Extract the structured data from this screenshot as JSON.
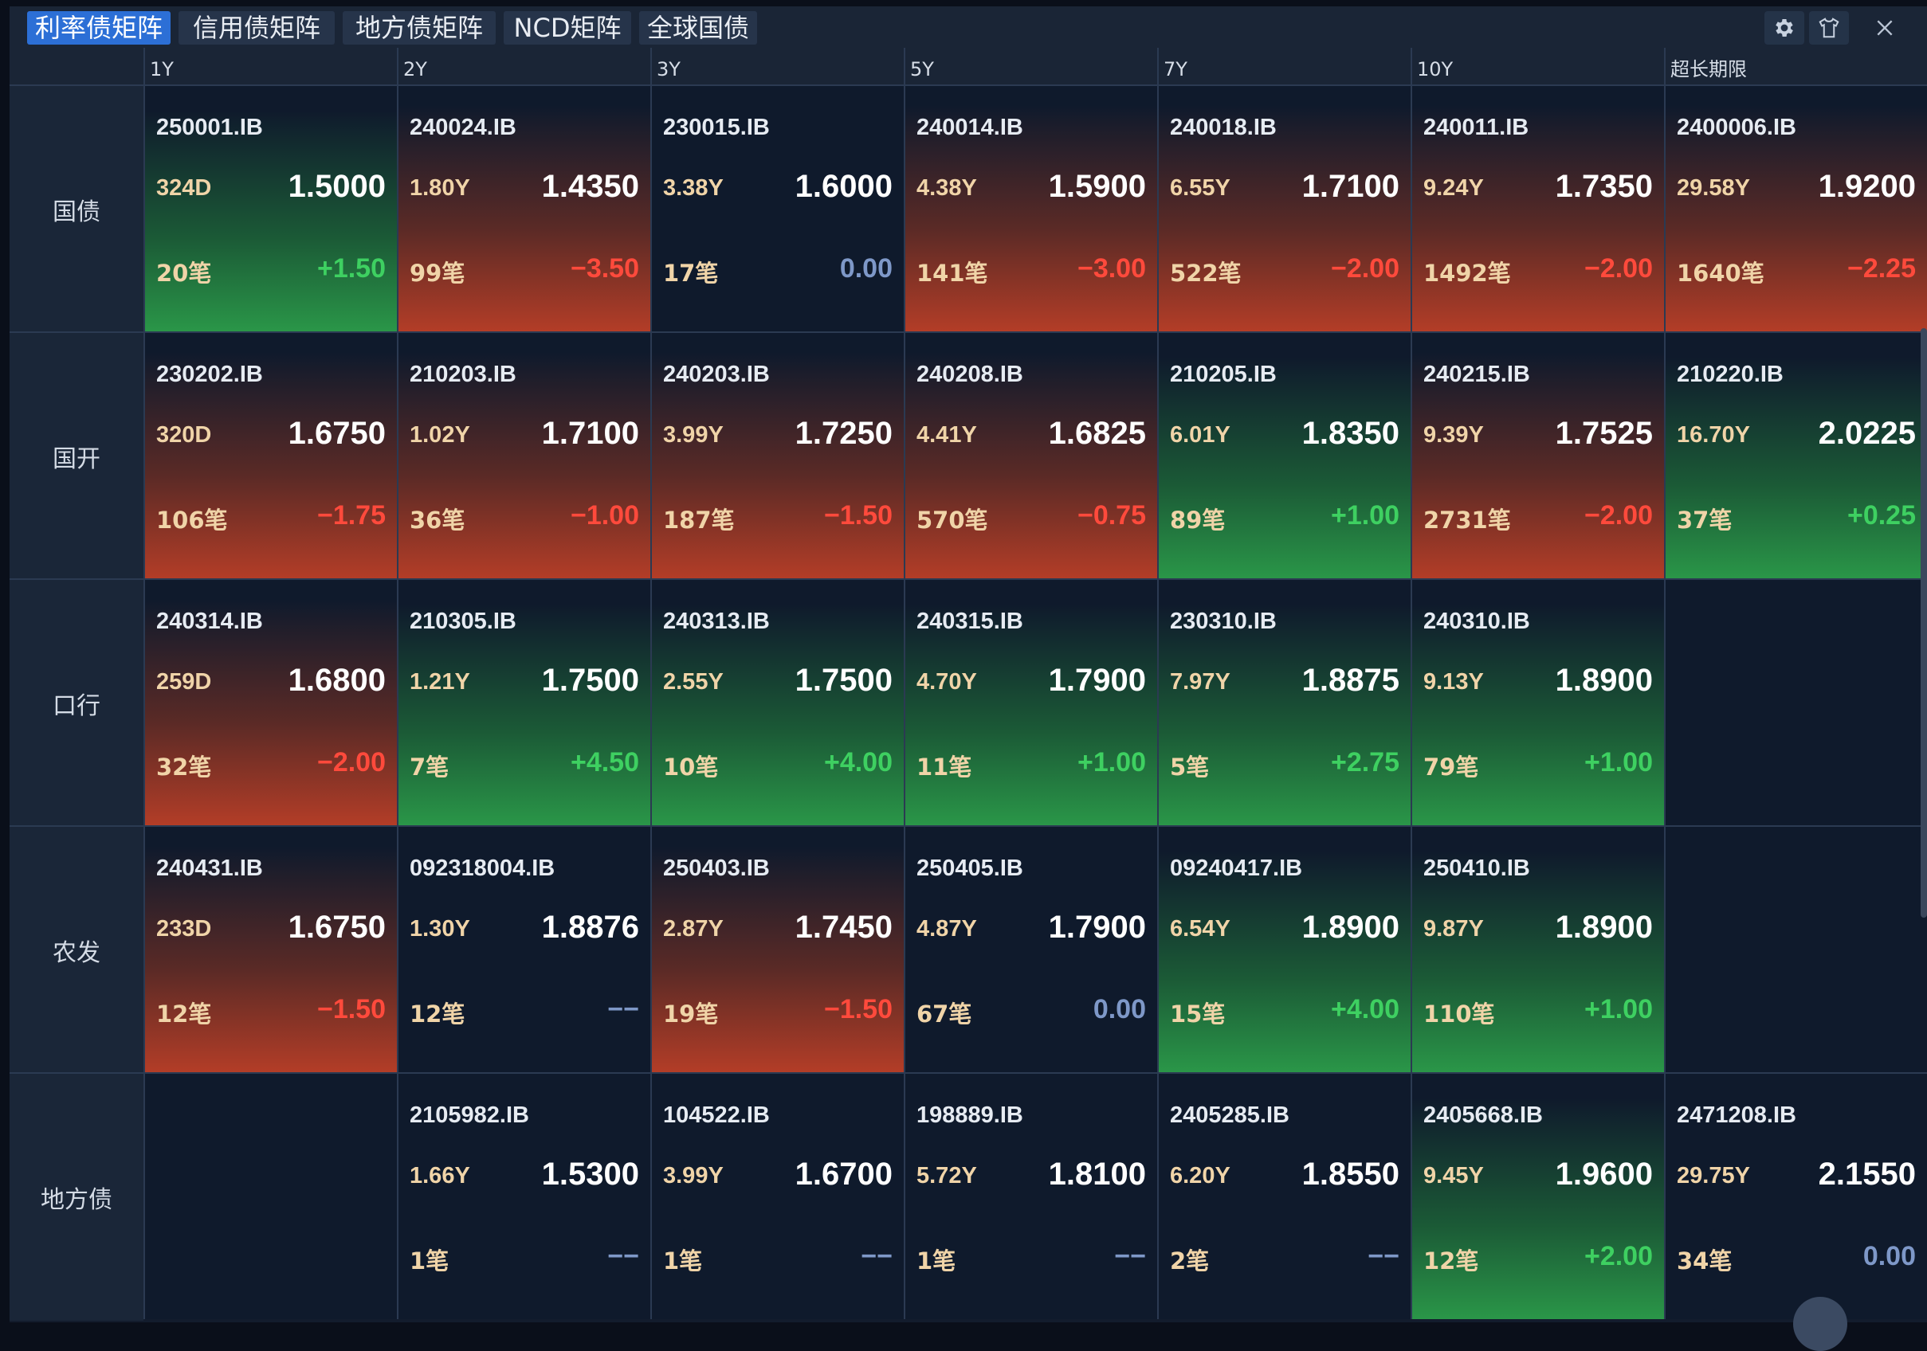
{
  "tabs": [
    {
      "label": "利率债矩阵",
      "active": true
    },
    {
      "label": "信用债矩阵",
      "active": false
    },
    {
      "label": "地方债矩阵",
      "active": false
    },
    {
      "label": "NCD矩阵",
      "active": false
    },
    {
      "label": "全球国债",
      "active": false
    }
  ],
  "toolbar": {
    "settings_icon": "gear-icon",
    "skin_icon": "shirt-icon",
    "close_label": "X"
  },
  "columns": [
    "1Y",
    "2Y",
    "3Y",
    "5Y",
    "7Y",
    "10Y",
    "超长期限"
  ],
  "colors": {
    "up": "#2a9648",
    "down": "#b33d27",
    "pos_text": "#3ed061",
    "neg_text": "#ff4a3c",
    "active_tab": "#2c6fd6"
  },
  "rows": [
    {
      "label": "国债",
      "cells": [
        {
          "code": "250001.IB",
          "tenor": "324D",
          "yield": "1.5000",
          "count": "20笔",
          "change": "+1.50",
          "trend": "up"
        },
        {
          "code": "240024.IB",
          "tenor": "1.80Y",
          "yield": "1.4350",
          "count": "99笔",
          "change": "−3.50",
          "trend": "down"
        },
        {
          "code": "230015.IB",
          "tenor": "3.38Y",
          "yield": "1.6000",
          "count": "17笔",
          "change": "0.00",
          "trend": "flat"
        },
        {
          "code": "240014.IB",
          "tenor": "4.38Y",
          "yield": "1.5900",
          "count": "141笔",
          "change": "−3.00",
          "trend": "down"
        },
        {
          "code": "240018.IB",
          "tenor": "6.55Y",
          "yield": "1.7100",
          "count": "522笔",
          "change": "−2.00",
          "trend": "down"
        },
        {
          "code": "240011.IB",
          "tenor": "9.24Y",
          "yield": "1.7350",
          "count": "1492笔",
          "change": "−2.00",
          "trend": "down"
        },
        {
          "code": "2400006.IB",
          "tenor": "29.58Y",
          "yield": "1.9200",
          "count": "1640笔",
          "change": "−2.25",
          "trend": "down"
        }
      ]
    },
    {
      "label": "国开",
      "cells": [
        {
          "code": "230202.IB",
          "tenor": "320D",
          "yield": "1.6750",
          "count": "106笔",
          "change": "−1.75",
          "trend": "down"
        },
        {
          "code": "210203.IB",
          "tenor": "1.02Y",
          "yield": "1.7100",
          "count": "36笔",
          "change": "−1.00",
          "trend": "down"
        },
        {
          "code": "240203.IB",
          "tenor": "3.99Y",
          "yield": "1.7250",
          "count": "187笔",
          "change": "−1.50",
          "trend": "down"
        },
        {
          "code": "240208.IB",
          "tenor": "4.41Y",
          "yield": "1.6825",
          "count": "570笔",
          "change": "−0.75",
          "trend": "down"
        },
        {
          "code": "210205.IB",
          "tenor": "6.01Y",
          "yield": "1.8350",
          "count": "89笔",
          "change": "+1.00",
          "trend": "up"
        },
        {
          "code": "240215.IB",
          "tenor": "9.39Y",
          "yield": "1.7525",
          "count": "2731笔",
          "change": "−2.00",
          "trend": "down"
        },
        {
          "code": "210220.IB",
          "tenor": "16.70Y",
          "yield": "2.0225",
          "count": "37笔",
          "change": "+0.25",
          "trend": "up"
        }
      ]
    },
    {
      "label": "口行",
      "cells": [
        {
          "code": "240314.IB",
          "tenor": "259D",
          "yield": "1.6800",
          "count": "32笔",
          "change": "−2.00",
          "trend": "down"
        },
        {
          "code": "210305.IB",
          "tenor": "1.21Y",
          "yield": "1.7500",
          "count": "7笔",
          "change": "+4.50",
          "trend": "up"
        },
        {
          "code": "240313.IB",
          "tenor": "2.55Y",
          "yield": "1.7500",
          "count": "10笔",
          "change": "+4.00",
          "trend": "up"
        },
        {
          "code": "240315.IB",
          "tenor": "4.70Y",
          "yield": "1.7900",
          "count": "11笔",
          "change": "+1.00",
          "trend": "up"
        },
        {
          "code": "230310.IB",
          "tenor": "7.97Y",
          "yield": "1.8875",
          "count": "5笔",
          "change": "+2.75",
          "trend": "up"
        },
        {
          "code": "240310.IB",
          "tenor": "9.13Y",
          "yield": "1.8900",
          "count": "79笔",
          "change": "+1.00",
          "trend": "up"
        },
        null
      ]
    },
    {
      "label": "农发",
      "cells": [
        {
          "code": "240431.IB",
          "tenor": "233D",
          "yield": "1.6750",
          "count": "12笔",
          "change": "−1.50",
          "trend": "down"
        },
        {
          "code": "092318004.IB",
          "tenor": "1.30Y",
          "yield": "1.8876",
          "count": "12笔",
          "change": "−−",
          "trend": "flat"
        },
        {
          "code": "250403.IB",
          "tenor": "2.87Y",
          "yield": "1.7450",
          "count": "19笔",
          "change": "−1.50",
          "trend": "down"
        },
        {
          "code": "250405.IB",
          "tenor": "4.87Y",
          "yield": "1.7900",
          "count": "67笔",
          "change": "0.00",
          "trend": "flat"
        },
        {
          "code": "09240417.IB",
          "tenor": "6.54Y",
          "yield": "1.8900",
          "count": "15笔",
          "change": "+4.00",
          "trend": "up"
        },
        {
          "code": "250410.IB",
          "tenor": "9.87Y",
          "yield": "1.8900",
          "count": "110笔",
          "change": "+1.00",
          "trend": "up"
        },
        null
      ]
    },
    {
      "label": "地方债",
      "cells": [
        null,
        {
          "code": "2105982.IB",
          "tenor": "1.66Y",
          "yield": "1.5300",
          "count": "1笔",
          "change": "−−",
          "trend": "flat"
        },
        {
          "code": "104522.IB",
          "tenor": "3.99Y",
          "yield": "1.6700",
          "count": "1笔",
          "change": "−−",
          "trend": "flat"
        },
        {
          "code": "198889.IB",
          "tenor": "5.72Y",
          "yield": "1.8100",
          "count": "1笔",
          "change": "−−",
          "trend": "flat"
        },
        {
          "code": "2405285.IB",
          "tenor": "6.20Y",
          "yield": "1.8550",
          "count": "2笔",
          "change": "−−",
          "trend": "flat"
        },
        {
          "code": "2405668.IB",
          "tenor": "9.45Y",
          "yield": "1.9600",
          "count": "12笔",
          "change": "+2.00",
          "trend": "up"
        },
        {
          "code": "2471208.IB",
          "tenor": "29.75Y",
          "yield": "2.1550",
          "count": "34笔",
          "change": "0.00",
          "trend": "flat"
        }
      ]
    }
  ]
}
